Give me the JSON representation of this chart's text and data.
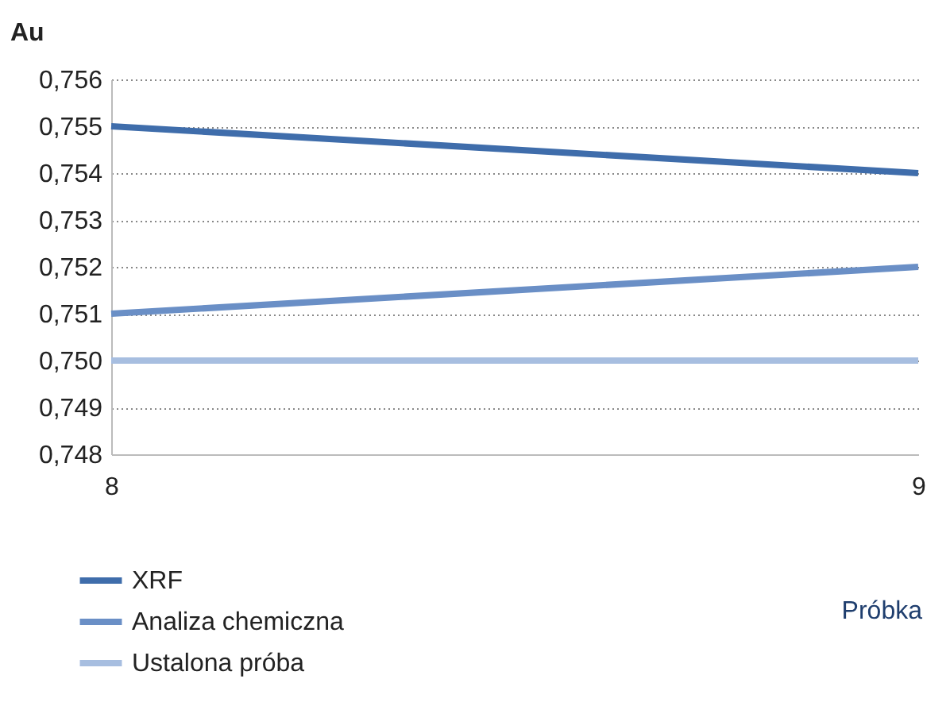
{
  "chart_data": {
    "type": "line",
    "xlabel": "Próbka",
    "ylabel": "Au",
    "x": [
      8,
      9
    ],
    "xlim": [
      8,
      9
    ],
    "xticks": [
      8,
      9
    ],
    "ylim": [
      0.748,
      0.756
    ],
    "yticks": [
      {
        "value": 0.748,
        "label": "0,748"
      },
      {
        "value": 0.749,
        "label": "0,749"
      },
      {
        "value": 0.75,
        "label": "0,750"
      },
      {
        "value": 0.751,
        "label": "0,751"
      },
      {
        "value": 0.752,
        "label": "0,752"
      },
      {
        "value": 0.753,
        "label": "0,753"
      },
      {
        "value": 0.754,
        "label": "0,754"
      },
      {
        "value": 0.755,
        "label": "0,755"
      },
      {
        "value": 0.756,
        "label": "0,756"
      }
    ],
    "series": [
      {
        "name": "XRF",
        "color": "#3f6dab",
        "values": [
          0.755,
          0.754
        ]
      },
      {
        "name": "Analiza chemiczna",
        "color": "#6a8fc6",
        "values": [
          0.751,
          0.752
        ]
      },
      {
        "name": "Ustalona próba",
        "color": "#a7bee0",
        "values": [
          0.75,
          0.75
        ]
      }
    ],
    "grid": "y",
    "legend": "bottom",
    "marker": "none",
    "line_style": "solid"
  }
}
